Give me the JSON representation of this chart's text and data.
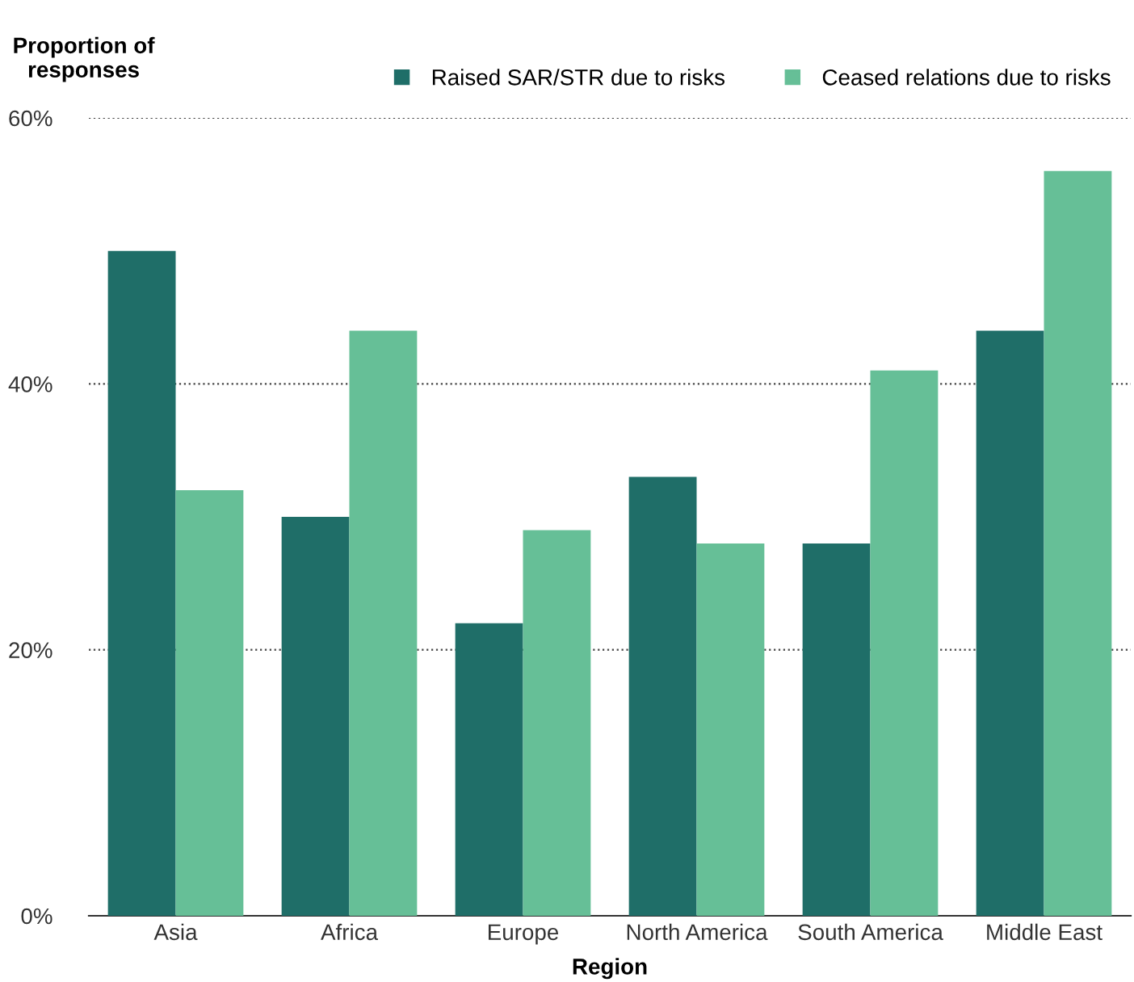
{
  "chart_data": {
    "type": "bar",
    "categories": [
      "Asia",
      "Africa",
      "Europe",
      "North America",
      "South America",
      "Middle East"
    ],
    "series": [
      {
        "name": "Raised SAR/STR due to risks",
        "color": "#1f6e68",
        "values": [
          50,
          30,
          22,
          33,
          28,
          44
        ]
      },
      {
        "name": "Ceased relations due to risks",
        "color": "#66bf97",
        "values": [
          32,
          44,
          29,
          28,
          41,
          56
        ]
      }
    ],
    "xlabel": "Region",
    "ylabel": "Proportion of\nresponses",
    "ylim": [
      0,
      60
    ],
    "yticks": [
      {
        "value": 0,
        "label": "0%"
      },
      {
        "value": 20,
        "label": "20%"
      },
      {
        "value": 40,
        "label": "40%"
      },
      {
        "value": 60,
        "label": "60%"
      }
    ],
    "grid": "y",
    "legend": "top",
    "marker": "square"
  }
}
